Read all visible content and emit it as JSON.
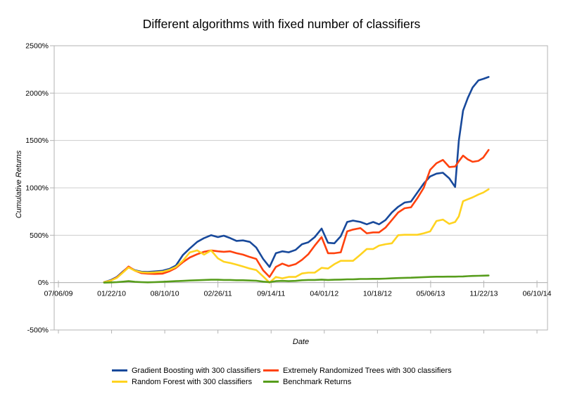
{
  "chart_data": {
    "type": "line",
    "title": "Different algorithms with fixed number of classifiers",
    "xlabel": "Date",
    "ylabel": "Cumulative Returns",
    "y_unit": "%",
    "ylim": [
      -500,
      2500
    ],
    "grid": "horizontal",
    "legend_position": "bottom",
    "y_ticks": [
      2500,
      2000,
      1500,
      1000,
      500,
      0,
      -500
    ],
    "y_tick_labels": [
      "2500%",
      "2000%",
      "1500%",
      "1000%",
      "500%",
      "0%",
      "-500%"
    ],
    "x_tick_labels": [
      "07/06/09",
      "01/22/10",
      "08/10/10",
      "02/26/11",
      "09/14/11",
      "04/01/12",
      "10/18/12",
      "05/06/13",
      "11/22/13",
      "06/10/14"
    ],
    "t": [
      0.86,
      0.98,
      1.1,
      1.22,
      1.32,
      1.44,
      1.56,
      1.68,
      1.81,
      1.96,
      2.09,
      2.21,
      2.34,
      2.47,
      2.61,
      2.74,
      2.87,
      3.0,
      3.11,
      3.23,
      3.35,
      3.47,
      3.6,
      3.72,
      3.85,
      3.97,
      4.09,
      4.21,
      4.33,
      4.46,
      4.58,
      4.7,
      4.82,
      4.95,
      5.07,
      5.19,
      5.31,
      5.43,
      5.54,
      5.68,
      5.8,
      5.92,
      6.03,
      6.15,
      6.27,
      6.39,
      6.51,
      6.63,
      6.75,
      6.87,
      6.99,
      7.11,
      7.23,
      7.35,
      7.46,
      7.53,
      7.61,
      7.7,
      7.79,
      7.9,
      7.99,
      8.09
    ],
    "series": [
      {
        "name": "Gradient Boosting with 300 classifiers",
        "color": "#18499B",
        "values": [
          5,
          25,
          60,
          120,
          165,
          130,
          115,
          112,
          118,
          125,
          145,
          180,
          290,
          360,
          430,
          470,
          500,
          480,
          495,
          470,
          440,
          445,
          430,
          370,
          250,
          165,
          310,
          330,
          320,
          345,
          405,
          425,
          480,
          570,
          420,
          415,
          490,
          640,
          655,
          640,
          615,
          640,
          615,
          660,
          740,
          800,
          845,
          855,
          950,
          1045,
          1120,
          1150,
          1160,
          1100,
          1010,
          1500,
          1815,
          1950,
          2060,
          2135,
          2150,
          2170
        ]
      },
      {
        "name": "Extremely Randomized Trees with 300 classifiers",
        "color": "#FF420E",
        "values": [
          5,
          20,
          55,
          115,
          170,
          125,
          100,
          95,
          92,
          95,
          120,
          155,
          215,
          265,
          300,
          325,
          340,
          330,
          325,
          330,
          310,
          295,
          270,
          250,
          130,
          60,
          165,
          200,
          175,
          195,
          240,
          300,
          390,
          480,
          310,
          310,
          320,
          540,
          560,
          575,
          520,
          530,
          530,
          580,
          660,
          740,
          785,
          795,
          890,
          1000,
          1190,
          1260,
          1295,
          1220,
          1225,
          1280,
          1340,
          1300,
          1275,
          1285,
          1320,
          1400
        ]
      },
      {
        "name": "Random Forest with 300 classifiers",
        "color": "#FFD320",
        "values": [
          5,
          20,
          50,
          110,
          160,
          125,
          110,
          105,
          108,
          115,
          135,
          165,
          230,
          318,
          340,
          295,
          340,
          255,
          220,
          207,
          190,
          170,
          148,
          133,
          65,
          0,
          60,
          45,
          60,
          60,
          96,
          105,
          105,
          156,
          148,
          195,
          230,
          230,
          230,
          295,
          355,
          355,
          390,
          405,
          415,
          500,
          505,
          505,
          505,
          520,
          540,
          650,
          665,
          620,
          640,
          700,
          860,
          880,
          900,
          930,
          950,
          985
        ]
      },
      {
        "name": "Benchmark Returns",
        "color": "#579D1C",
        "values": [
          0,
          2,
          5,
          10,
          15,
          8,
          5,
          3,
          5,
          8,
          12,
          15,
          18,
          22,
          25,
          28,
          30,
          30,
          28,
          28,
          25,
          25,
          22,
          20,
          10,
          5,
          15,
          18,
          15,
          18,
          25,
          28,
          28,
          32,
          28,
          30,
          32,
          35,
          35,
          38,
          38,
          40,
          40,
          42,
          45,
          48,
          50,
          52,
          55,
          58,
          60,
          62,
          62,
          63,
          63,
          64,
          65,
          68,
          70,
          72,
          73,
          75
        ]
      }
    ],
    "colors": {
      "gridline": "#cdcdcd",
      "axis": "#b3b3b3",
      "text": "#000000",
      "background": "#ffffff"
    }
  }
}
